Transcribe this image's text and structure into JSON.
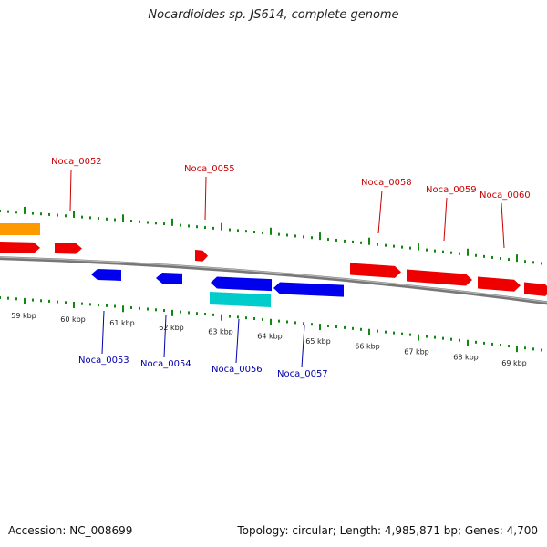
{
  "title": "Nocardioides sp. JS614, complete genome",
  "footer": {
    "accession": "Accession: NC_008699",
    "summary": "Topology: circular; Length: 4,985,871 bp; Genes: 4,700"
  },
  "colors": {
    "forward_gene": "#ee0000",
    "reverse_gene": "#0000ee",
    "rna_gene": "#ff9900",
    "other_feature": "#00cccc",
    "tick": "#118811",
    "backbone": "#777777"
  },
  "ticks": [
    "59 kbp",
    "60 kbp",
    "61 kbp",
    "62 kbp",
    "63 kbp",
    "64 kbp",
    "65 kbp",
    "66 kbp",
    "67 kbp",
    "68 kbp",
    "69 kbp"
  ],
  "forward_labels": [
    "Noca_0052",
    "Noca_0055",
    "Noca_0058",
    "Noca_0059",
    "Noca_0060"
  ],
  "reverse_labels": [
    "Noca_0053",
    "Noca_0054",
    "Noca_0056",
    "Noca_0057"
  ]
}
